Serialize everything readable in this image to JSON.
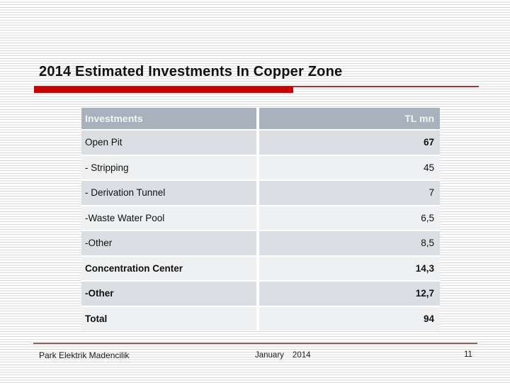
{
  "slide": {
    "title": "2014 Estimated Investments In Copper Zone",
    "footer": {
      "company": "Park Elektrik Madencilik",
      "date_month": "January",
      "date_year": "2014",
      "page_number": "11"
    }
  },
  "table": {
    "headers": [
      "Investments",
      "TL mn"
    ],
    "rows": [
      {
        "label": "Open Pit",
        "value": "67"
      },
      {
        "label": "- Stripping",
        "value": "45"
      },
      {
        "label": "- Derivation Tunnel",
        "value": "7"
      },
      {
        "label": "-Waste Water Pool",
        "value": "6,5"
      },
      {
        "label": "-Other",
        "value": "8,5"
      },
      {
        "label": "Concentration Center",
        "value": "14,3"
      },
      {
        "label": "-Other",
        "value": "12,7"
      },
      {
        "label": "Total",
        "value": "94"
      }
    ]
  },
  "colors": {
    "accent_red_bar": "#c80000",
    "accent_thin_line": "#a83232",
    "table_header_bg": "#a7b2bc",
    "row_dark_bg": "#dbdfe3",
    "row_light_bg": "#eef0f2",
    "footer_line": "#5c2c2c",
    "stripe_gray": "#d9d9d9"
  }
}
